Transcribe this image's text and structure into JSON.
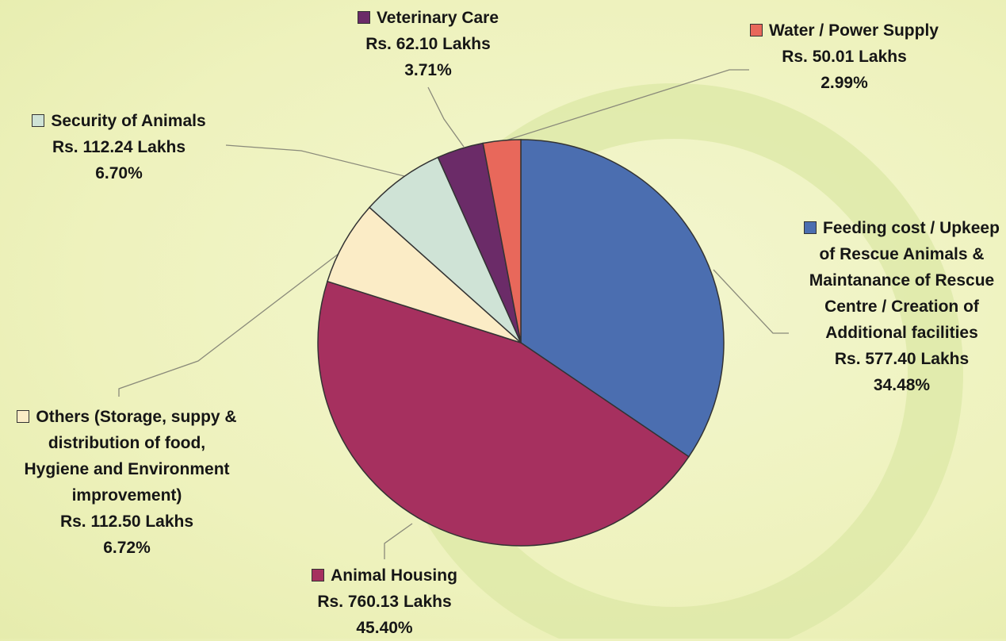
{
  "chart_data": {
    "type": "pie",
    "categories": [
      "Feeding cost / Upkeep of Rescue Animals & Maintanance of Rescue Centre / Creation of Additional facilities",
      "Animal Housing",
      "Others (Storage, suppy & distribution of food, Hygiene and Environment improvement)",
      "Security of Animals",
      "Veterinary Care",
      "Water / Power Supply"
    ],
    "values": [
      577.4,
      760.13,
      112.5,
      112.24,
      62.1,
      50.01
    ],
    "value_labels": [
      "Rs. 577.40 Lakhs",
      "Rs. 760.13 Lakhs",
      "Rs. 112.50 Lakhs",
      "Rs. 112.24 Lakhs",
      "Rs. 62.10 Lakhs",
      "Rs. 50.01 Lakhs"
    ],
    "percent_labels": [
      "34.48%",
      "45.40%",
      "6.72%",
      "6.70%",
      "3.71%",
      "2.99%"
    ],
    "colors": [
      "#4b6eb0",
      "#a6305f",
      "#fbecc6",
      "#cfe3d6",
      "#6b2b68",
      "#e8685b"
    ]
  }
}
